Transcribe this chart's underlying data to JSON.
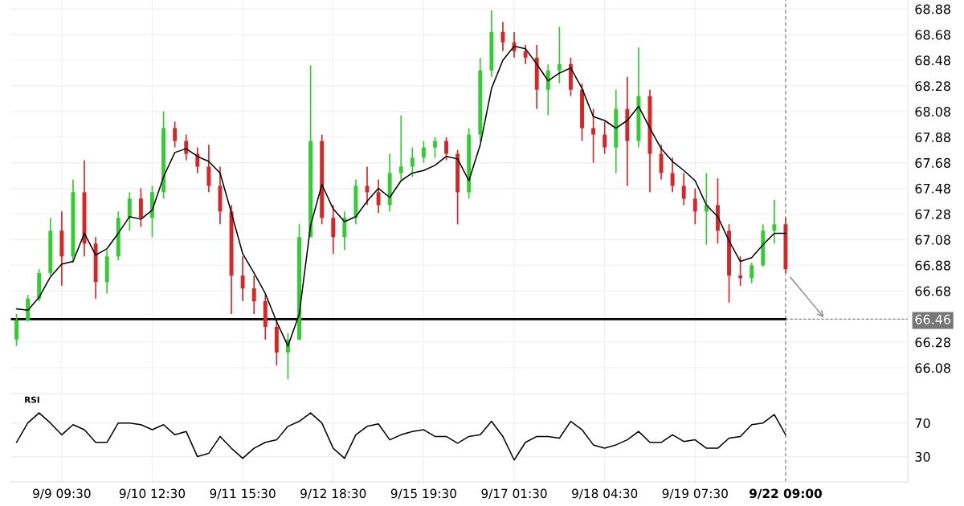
{
  "chart_data": [
    {
      "type": "candlestick",
      "categories": [
        null,
        null,
        null,
        null,
        "9/9 09:30",
        null,
        null,
        null,
        null,
        null,
        null,
        null,
        "9/10 12:30",
        null,
        null,
        null,
        null,
        null,
        null,
        null,
        "9/11 15:30",
        null,
        null,
        null,
        null,
        null,
        null,
        null,
        "9/12 18:30",
        null,
        null,
        null,
        null,
        null,
        null,
        null,
        "9/15 19:30",
        null,
        null,
        null,
        null,
        null,
        null,
        null,
        "9/17 01:30",
        null,
        null,
        null,
        null,
        null,
        null,
        null,
        "9/18 04:30",
        null,
        null,
        null,
        null,
        null,
        null,
        null,
        "9/19 07:30",
        null,
        null,
        null,
        null,
        null,
        null,
        null,
        "9/22 09:00"
      ],
      "ohlc": [
        [
          66.3,
          66.5,
          66.25,
          66.45
        ],
        [
          66.45,
          66.65,
          66.44,
          66.62
        ],
        [
          66.62,
          66.85,
          66.6,
          66.82
        ],
        [
          66.82,
          67.25,
          66.8,
          67.15
        ],
        [
          67.15,
          67.3,
          66.72,
          66.95
        ],
        [
          66.95,
          67.55,
          66.9,
          67.45
        ],
        [
          67.45,
          67.7,
          66.95,
          67.05
        ],
        [
          67.05,
          67.1,
          66.62,
          66.75
        ],
        [
          66.75,
          67.0,
          66.66,
          66.95
        ],
        [
          66.95,
          67.3,
          66.92,
          67.25
        ],
        [
          67.25,
          67.45,
          67.15,
          67.4
        ],
        [
          67.4,
          67.48,
          67.18,
          67.25
        ],
        [
          67.25,
          67.5,
          67.1,
          67.45
        ],
        [
          67.45,
          68.08,
          67.4,
          67.95
        ],
        [
          67.95,
          68.0,
          67.8,
          67.85
        ],
        [
          67.85,
          67.9,
          67.7,
          67.75
        ],
        [
          67.75,
          67.8,
          67.6,
          67.65
        ],
        [
          67.65,
          67.82,
          67.45,
          67.5
        ],
        [
          67.5,
          67.65,
          67.2,
          67.3
        ],
        [
          67.3,
          67.35,
          66.5,
          66.8
        ],
        [
          66.8,
          66.95,
          66.6,
          66.7
        ],
        [
          66.7,
          66.8,
          66.5,
          66.6
        ],
        [
          66.6,
          66.65,
          66.3,
          66.4
        ],
        [
          66.4,
          66.45,
          66.1,
          66.2
        ],
        [
          66.2,
          66.35,
          65.99,
          66.3
        ],
        [
          66.3,
          67.2,
          66.3,
          67.1
        ],
        [
          67.1,
          68.44,
          67.1,
          67.85
        ],
        [
          67.85,
          67.9,
          67.2,
          67.25
        ],
        [
          67.25,
          67.35,
          66.97,
          67.1
        ],
        [
          67.1,
          67.3,
          67.0,
          67.25
        ],
        [
          67.25,
          67.55,
          67.2,
          67.5
        ],
        [
          67.5,
          67.65,
          67.35,
          67.45
        ],
        [
          67.45,
          67.55,
          67.29,
          67.35
        ],
        [
          67.35,
          67.75,
          67.3,
          67.6
        ],
        [
          67.6,
          68.05,
          67.55,
          67.65
        ],
        [
          67.65,
          67.8,
          67.57,
          67.72
        ],
        [
          67.72,
          67.85,
          67.68,
          67.8
        ],
        [
          67.8,
          67.88,
          67.72,
          67.85
        ],
        [
          67.85,
          67.88,
          67.7,
          67.75
        ],
        [
          67.75,
          67.78,
          67.2,
          67.45
        ],
        [
          67.45,
          67.95,
          67.4,
          67.9
        ],
        [
          67.9,
          68.5,
          67.85,
          68.4
        ],
        [
          68.4,
          68.87,
          68.35,
          68.7
        ],
        [
          68.7,
          68.78,
          68.55,
          68.62
        ],
        [
          68.62,
          68.7,
          68.5,
          68.55
        ],
        [
          68.55,
          68.6,
          68.45,
          68.5
        ],
        [
          68.5,
          68.6,
          68.1,
          68.25
        ],
        [
          68.25,
          68.45,
          68.05,
          68.4
        ],
        [
          68.4,
          68.74,
          68.3,
          68.45
        ],
        [
          68.45,
          68.5,
          68.2,
          68.25
        ],
        [
          68.25,
          68.3,
          67.85,
          67.95
        ],
        [
          67.95,
          68.1,
          67.68,
          67.9
        ],
        [
          67.9,
          68.0,
          67.75,
          67.8
        ],
        [
          67.8,
          68.25,
          67.6,
          68.1
        ],
        [
          68.1,
          68.35,
          67.5,
          67.85
        ],
        [
          67.85,
          68.58,
          67.8,
          68.2
        ],
        [
          68.2,
          68.25,
          67.45,
          67.75
        ],
        [
          67.75,
          67.82,
          67.55,
          67.6
        ],
        [
          67.6,
          67.72,
          67.45,
          67.5
        ],
        [
          67.5,
          67.6,
          67.35,
          67.4
        ],
        [
          67.4,
          67.48,
          67.2,
          67.3
        ],
        [
          67.3,
          67.6,
          67.04,
          67.35
        ],
        [
          67.35,
          67.56,
          67.05,
          67.15
        ],
        [
          67.15,
          67.2,
          66.59,
          66.8
        ],
        [
          66.8,
          66.95,
          66.72,
          66.78
        ],
        [
          66.78,
          66.9,
          66.74,
          66.88
        ],
        [
          66.88,
          67.2,
          66.87,
          67.15
        ],
        [
          67.15,
          67.39,
          67.05,
          67.2
        ],
        [
          67.2,
          67.25,
          66.82,
          66.85
        ]
      ],
      "colors": [
        "#33cc33",
        "#33cc33",
        "#33cc33",
        "#33cc33",
        "#d62728",
        "#33cc33",
        "#d62728",
        "#d62728",
        "#33cc33",
        "#33cc33",
        "#33cc33",
        "#d62728",
        "#33cc33",
        "#33cc33",
        "#d62728",
        "#d62728",
        "#d62728",
        "#d62728",
        "#d62728",
        "#d62728",
        "#d62728",
        "#d62728",
        "#d62728",
        "#d62728",
        "#33cc33",
        "#33cc33",
        "#33cc33",
        "#d62728",
        "#d62728",
        "#33cc33",
        "#33cc33",
        "#d62728",
        "#d62728",
        "#33cc33",
        "#33cc33",
        "#33cc33",
        "#33cc33",
        "#33cc33",
        "#d62728",
        "#d62728",
        "#33cc33",
        "#33cc33",
        "#33cc33",
        "#d62728",
        "#d62728",
        "#d62728",
        "#d62728",
        "#33cc33",
        "#33cc33",
        "#d62728",
        "#d62728",
        "#d62728",
        "#d62728",
        "#33cc33",
        "#d62728",
        "#33cc33",
        "#d62728",
        "#d62728",
        "#d62728",
        "#d62728",
        "#d62728",
        "#33cc33",
        "#d62728",
        "#d62728",
        "#d62728",
        "#33cc33",
        "#33cc33",
        "#33cc33",
        "#d62728"
      ],
      "series": [
        {
          "type": "line",
          "color": "#000000",
          "values": [
            66.54,
            66.53,
            66.63,
            66.79,
            66.89,
            66.91,
            67.13,
            66.96,
            67.01,
            67.13,
            67.26,
            67.24,
            67.31,
            67.57,
            67.76,
            67.79,
            67.73,
            67.69,
            67.6,
            67.29,
            66.97,
            66.82,
            66.66,
            66.44,
            66.25,
            66.5,
            67.19,
            67.51,
            67.32,
            67.22,
            67.26,
            67.38,
            67.48,
            67.41,
            67.54,
            67.6,
            67.62,
            67.66,
            67.73,
            67.71,
            67.54,
            67.82,
            68.26,
            68.48,
            68.59,
            68.57,
            68.45,
            68.32,
            68.38,
            68.42,
            68.26,
            68.04,
            68.01,
            67.95,
            68.01,
            68.12,
            67.95,
            67.79,
            67.69,
            67.62,
            67.54,
            67.35,
            67.26,
            67.07,
            66.91,
            66.94,
            67.04,
            67.13,
            67.13
          ]
        }
      ],
      "ylim": [
        65.19,
        68.95
      ],
      "yticks": [
        66.08,
        66.28,
        {
          "value": 66.46,
          "label": "66.46"
        },
        66.68,
        66.88,
        67.08,
        67.28,
        67.48,
        67.68,
        67.88,
        68.08,
        68.28,
        68.48,
        68.68,
        68.88
      ],
      "ref_lines": [
        {
          "axis": "y",
          "value": 66.46,
          "color": "#000000",
          "line_style": "solid"
        },
        {
          "axis": "x",
          "value": "9/22 09:00",
          "color": "#777777",
          "line_style": "dashed"
        }
      ],
      "grid": true
    },
    {
      "type": "line",
      "title": "RSI",
      "categories": [
        null,
        null,
        null,
        null,
        null,
        null,
        null,
        null,
        null,
        null,
        null,
        null,
        null,
        null,
        null,
        null,
        null,
        null,
        null,
        null,
        null,
        null,
        null,
        null,
        null,
        null,
        null,
        null,
        null,
        null,
        null,
        null,
        null,
        null,
        null,
        null,
        null,
        null,
        null,
        null,
        null,
        null,
        null,
        null,
        null,
        null,
        null,
        null,
        null,
        null,
        null,
        null,
        null,
        null,
        null,
        null,
        null,
        null,
        null,
        null,
        null,
        null,
        null,
        null,
        null,
        null,
        null,
        null,
        null
      ],
      "series": [
        {
          "color": "#000000",
          "values": [
            47,
            70,
            82,
            70,
            56,
            68,
            62,
            47,
            47,
            70,
            70,
            68,
            62,
            68,
            56,
            60,
            30,
            34,
            54,
            40,
            28,
            40,
            47,
            50,
            66,
            72,
            82,
            70,
            40,
            28,
            56,
            66,
            69,
            50,
            56,
            60,
            62,
            54,
            54,
            46,
            54,
            56,
            72,
            54,
            26,
            47,
            54,
            54,
            52,
            72,
            62,
            44,
            40,
            44,
            50,
            60,
            47,
            47,
            56,
            48,
            50,
            40,
            40,
            52,
            54,
            68,
            70,
            80,
            56
          ]
        }
      ],
      "ylim": [
        0,
        105
      ],
      "yticks": [
        30,
        70
      ],
      "grid": "y"
    }
  ]
}
